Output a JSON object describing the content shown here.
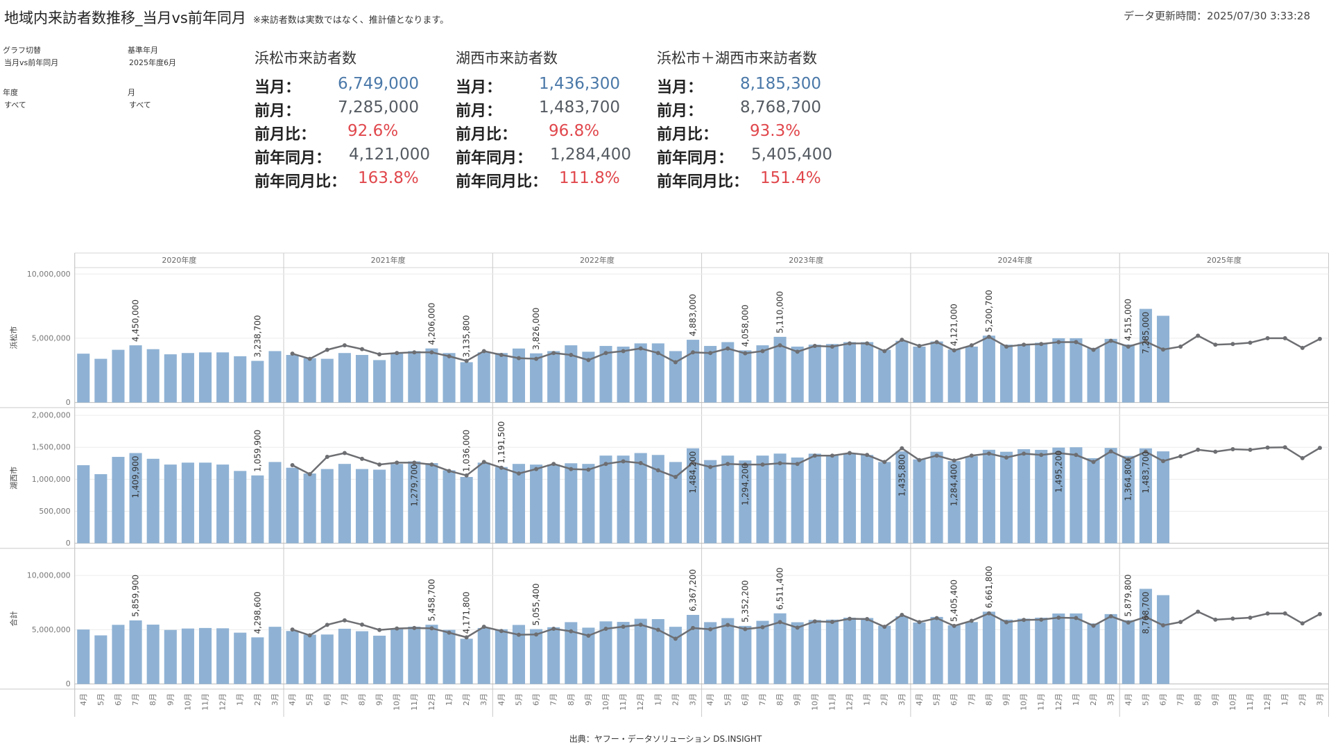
{
  "header": {
    "title": "地域内来訪者数推移_当月vs前年同月",
    "note": "※来訪者数は実数ではなく、推計値となります。",
    "updated": "データ更新時間：2025/07/30 3:33:28"
  },
  "filters": [
    {
      "label": "グラフ切替",
      "value": "当月vs前年同月"
    },
    {
      "label": "基準年月",
      "value": "2025年度6月"
    },
    {
      "label": "年度",
      "value": "すべて"
    },
    {
      "label": "月",
      "value": "すべて"
    }
  ],
  "kpis": [
    {
      "title": "浜松市来訪者数",
      "rows": [
        {
          "label": "当月：",
          "value": "6,749,000",
          "color": "#4a78a8"
        },
        {
          "label": "前月：",
          "value": "7,285,000",
          "color": "#555b62"
        },
        {
          "label": "前月比：",
          "value": "92.6%",
          "color": "#e0474c"
        },
        {
          "label": "前年同月：",
          "value": "4,121,000",
          "color": "#555b62"
        },
        {
          "label": "前年同月比：",
          "value": "163.8%",
          "color": "#e0474c"
        }
      ]
    },
    {
      "title": "湖西市来訪者数",
      "rows": [
        {
          "label": "当月：",
          "value": "1,436,300",
          "color": "#4a78a8"
        },
        {
          "label": "前月：",
          "value": "1,483,700",
          "color": "#555b62"
        },
        {
          "label": "前月比：",
          "value": "96.8%",
          "color": "#e0474c"
        },
        {
          "label": "前年同月：",
          "value": "1,284,400",
          "color": "#555b62"
        },
        {
          "label": "前年同月比：",
          "value": "111.8%",
          "color": "#e0474c"
        }
      ]
    },
    {
      "title": "浜松市＋湖西市来訪者数",
      "rows": [
        {
          "label": "当月：",
          "value": "8,185,300",
          "color": "#4a78a8"
        },
        {
          "label": "前月：",
          "value": "8,768,700",
          "color": "#555b62"
        },
        {
          "label": "前月比：",
          "value": "93.3%",
          "color": "#e0474c"
        },
        {
          "label": "前年同月：",
          "value": "5,405,400",
          "color": "#555b62"
        },
        {
          "label": "前年同月比：",
          "value": "151.4%",
          "color": "#e0474c"
        }
      ]
    }
  ],
  "x_axis": {
    "groups": [
      "2020年度",
      "2021年度",
      "2022年度",
      "2023年度",
      "2024年度",
      "2025年度"
    ],
    "categories": [
      "4月",
      "5月",
      "6月",
      "7月",
      "8月",
      "9月",
      "10月",
      "11月",
      "12月",
      "1月",
      "2月",
      "3月",
      "4月",
      "5月",
      "6月",
      "7月",
      "8月",
      "9月",
      "10月",
      "11月",
      "12月",
      "1月",
      "2月",
      "3月",
      "4月",
      "5月",
      "6月",
      "7月",
      "8月",
      "9月",
      "10月",
      "11月",
      "12月",
      "1月",
      "2月",
      "3月",
      "4月",
      "5月",
      "6月",
      "7月",
      "8月",
      "9月",
      "10月",
      "11月",
      "12月",
      "1月",
      "2月",
      "3月",
      "4月",
      "5月",
      "6月",
      "7月",
      "8月",
      "9月",
      "10月",
      "11月",
      "12月",
      "1月",
      "2月",
      "3月",
      "4月",
      "5月",
      "6月",
      "7月",
      "8月",
      "9月",
      "10月",
      "11月",
      "12月",
      "1月",
      "2月",
      "3月"
    ]
  },
  "chart_data": [
    {
      "type": "bar",
      "ylabel": "浜松市",
      "color": "#8fb2d4",
      "line_color": "#6d6e72",
      "grid": true,
      "ylim": [
        -400000,
        10500000
      ],
      "yticks": [
        0,
        {
          "value": 5000000,
          "label": "5,000,000"
        },
        {
          "value": 10000000,
          "label": "10,000,000"
        }
      ],
      "values": [
        3800000,
        3400000,
        4100000,
        4450000,
        4150000,
        3750000,
        3850000,
        3900000,
        3900000,
        3600000,
        3238700,
        4000000,
        3700000,
        3450000,
        3400000,
        3850000,
        3700000,
        3300000,
        3850000,
        4000000,
        4206000,
        3850000,
        3135800,
        3900000,
        3850000,
        4200000,
        3826000,
        4000000,
        4450000,
        3950000,
        4400000,
        4350000,
        4600000,
        4600000,
        4000000,
        4883000,
        4400000,
        4700000,
        4058000,
        4450000,
        5110000,
        4350000,
        4500000,
        4550000,
        4700000,
        4700000,
        4100000,
        4800000,
        4350000,
        4750000,
        4121000,
        4350000,
        5200700,
        4500000,
        4550000,
        4650000,
        5000000,
        5000000,
        4250000,
        4950000,
        4515000,
        7285000,
        6749000,
        null,
        null,
        null,
        null,
        null,
        null,
        null,
        null,
        null
      ],
      "line_values": [
        null,
        null,
        null,
        null,
        null,
        null,
        null,
        null,
        null,
        null,
        null,
        null,
        3800000,
        3400000,
        4100000,
        4450000,
        4150000,
        3750000,
        3850000,
        3900000,
        3900000,
        3600000,
        3238700,
        4000000,
        3700000,
        3450000,
        3400000,
        3850000,
        3700000,
        3300000,
        3850000,
        4000000,
        4206000,
        3850000,
        3135800,
        3900000,
        3850000,
        4200000,
        3826000,
        4000000,
        4450000,
        3950000,
        4400000,
        4350000,
        4600000,
        4600000,
        4000000,
        4883000,
        4400000,
        4700000,
        4058000,
        4450000,
        5110000,
        4350000,
        4500000,
        4550000,
        4700000,
        4700000,
        4100000,
        4800000,
        4350000,
        4750000,
        4121000,
        4350000,
        5200700,
        4500000,
        4550000,
        4650000,
        5000000,
        5000000,
        4250000,
        4950000
      ],
      "value_labels": [
        null,
        null,
        null,
        "4,450,000",
        null,
        null,
        null,
        null,
        null,
        null,
        "3,238,700",
        null,
        null,
        null,
        null,
        null,
        null,
        null,
        null,
        null,
        "4,206,000",
        null,
        "3,135,800",
        null,
        null,
        null,
        "3,826,000",
        null,
        null,
        null,
        null,
        null,
        null,
        null,
        null,
        "4,883,000",
        null,
        null,
        "4,058,000",
        null,
        "5,110,000",
        null,
        null,
        null,
        null,
        null,
        null,
        null,
        null,
        null,
        "4,121,000",
        null,
        "5,200,700",
        null,
        null,
        null,
        null,
        null,
        null,
        null,
        "4,515,000",
        "7,285,000",
        null,
        null,
        null,
        null,
        null,
        null,
        null,
        null,
        null,
        null
      ]
    },
    {
      "type": "bar",
      "ylabel": "湖西市",
      "color": "#8fb2d4",
      "line_color": "#6d6e72",
      "grid": true,
      "ylim": [
        -80000,
        2120000
      ],
      "yticks": [
        0,
        {
          "value": 500000,
          "label": "500,000"
        },
        {
          "value": 1000000,
          "label": "1,000,000"
        },
        {
          "value": 1500000,
          "label": "1,500,000"
        },
        {
          "value": 2000000,
          "label": "2,000,000"
        }
      ],
      "values": [
        1220000,
        1080000,
        1350000,
        1409900,
        1320000,
        1230000,
        1260000,
        1260000,
        1230000,
        1130000,
        1059900,
        1270000,
        1180000,
        1090000,
        1160000,
        1240000,
        1160000,
        1150000,
        1240000,
        1279700,
        1252700,
        1140000,
        1036000,
        1260000,
        1191500,
        1240000,
        1229400,
        1230000,
        1250000,
        1240000,
        1370000,
        1370000,
        1410000,
        1380000,
        1270000,
        1484200,
        1300000,
        1370000,
        1294200,
        1370000,
        1401400,
        1340000,
        1400000,
        1380000,
        1410000,
        1380000,
        1270000,
        1435800,
        1310000,
        1430000,
        1284400,
        1360000,
        1461100,
        1430000,
        1470000,
        1460000,
        1495200,
        1500000,
        1330000,
        1490000,
        1364800,
        1483700,
        1436300,
        null,
        null,
        null,
        null,
        null,
        null,
        null,
        null,
        null
      ],
      "line_values": [
        null,
        null,
        null,
        null,
        null,
        null,
        null,
        null,
        null,
        null,
        null,
        null,
        1220000,
        1080000,
        1350000,
        1409900,
        1320000,
        1230000,
        1260000,
        1260000,
        1230000,
        1130000,
        1059900,
        1270000,
        1180000,
        1090000,
        1160000,
        1240000,
        1160000,
        1150000,
        1240000,
        1279700,
        1252700,
        1140000,
        1036000,
        1260000,
        1191500,
        1240000,
        1229400,
        1230000,
        1250000,
        1240000,
        1370000,
        1370000,
        1410000,
        1380000,
        1270000,
        1484200,
        1300000,
        1370000,
        1294200,
        1370000,
        1401400,
        1340000,
        1400000,
        1380000,
        1410000,
        1380000,
        1270000,
        1435800,
        1310000,
        1430000,
        1284400,
        1360000,
        1461100,
        1430000,
        1470000,
        1460000,
        1495200,
        1500000,
        1330000,
        1490000
      ],
      "value_labels": [
        null,
        null,
        null,
        "1,409,900",
        null,
        null,
        null,
        null,
        null,
        null,
        "1,059,900",
        null,
        null,
        null,
        null,
        null,
        null,
        null,
        null,
        "1,279,700",
        null,
        null,
        "1,036,000",
        null,
        "1,191,500",
        null,
        null,
        null,
        null,
        null,
        null,
        null,
        null,
        null,
        null,
        "1,484,200",
        null,
        null,
        "1,294,200",
        null,
        null,
        null,
        null,
        null,
        null,
        null,
        null,
        "1,435,800",
        null,
        null,
        "1,284,400",
        null,
        null,
        null,
        null,
        null,
        "1,495,200",
        null,
        null,
        null,
        "1,364,800",
        "1,483,700",
        null,
        null,
        null,
        null,
        null,
        null,
        null,
        null,
        null,
        null
      ]
    },
    {
      "type": "bar",
      "ylabel": "合計",
      "color": "#8fb2d4",
      "line_color": "#6d6e72",
      "grid": true,
      "ylim": [
        -470000,
        12500000
      ],
      "yticks": [
        0,
        {
          "value": 5000000,
          "label": "5,000,000"
        },
        {
          "value": 10000000,
          "label": "10,000,000"
        }
      ],
      "values": [
        5020000,
        4480000,
        5450000,
        5859900,
        5470000,
        4980000,
        5110000,
        5160000,
        5130000,
        4730000,
        4298600,
        5270000,
        4880000,
        4540000,
        4560000,
        5090000,
        4860000,
        4450000,
        5090000,
        5279700,
        5458700,
        4990000,
        4171800,
        5160000,
        5041500,
        5440000,
        5055400,
        5230000,
        5700000,
        5190000,
        5770000,
        5720000,
        6010000,
        5980000,
        5270000,
        6367200,
        5700000,
        6070000,
        5352200,
        5820000,
        6511400,
        5690000,
        5900000,
        5930000,
        6110000,
        6080000,
        5370000,
        6235800,
        5660000,
        6180000,
        5405400,
        5710000,
        6661800,
        5930000,
        6020000,
        6110000,
        6495200,
        6500000,
        5580000,
        6440000,
        5879800,
        8768700,
        8185300,
        null,
        null,
        null,
        null,
        null,
        null,
        null,
        null,
        null
      ],
      "line_values": [
        null,
        null,
        null,
        null,
        null,
        null,
        null,
        null,
        null,
        null,
        null,
        null,
        5020000,
        4480000,
        5450000,
        5859900,
        5470000,
        4980000,
        5110000,
        5160000,
        5130000,
        4730000,
        4298600,
        5270000,
        4880000,
        4540000,
        4560000,
        5090000,
        4860000,
        4450000,
        5090000,
        5279700,
        5458700,
        4990000,
        4171800,
        5160000,
        5041500,
        5440000,
        5055400,
        5230000,
        5700000,
        5190000,
        5770000,
        5720000,
        6010000,
        5980000,
        5270000,
        6367200,
        5700000,
        6070000,
        5352200,
        5820000,
        6511400,
        5690000,
        5900000,
        5930000,
        6110000,
        6080000,
        5370000,
        6235800,
        5660000,
        6180000,
        5405400,
        5710000,
        6661800,
        5930000,
        6020000,
        6110000,
        6495200,
        6500000,
        5580000,
        6440000
      ],
      "value_labels": [
        null,
        null,
        null,
        "5,859,900",
        null,
        null,
        null,
        null,
        null,
        null,
        "4,298,600",
        null,
        null,
        null,
        null,
        null,
        null,
        null,
        null,
        null,
        "5,458,700",
        null,
        "4,171,800",
        null,
        null,
        null,
        "5,055,400",
        null,
        null,
        null,
        null,
        null,
        null,
        null,
        null,
        "6,367,200",
        null,
        null,
        "5,352,200",
        null,
        "6,511,400",
        null,
        null,
        null,
        null,
        null,
        null,
        null,
        null,
        null,
        "5,405,400",
        null,
        "6,661,800",
        null,
        null,
        null,
        null,
        null,
        null,
        null,
        "5,879,800",
        "8,768,700",
        null,
        null,
        null,
        null,
        null,
        null,
        null,
        null,
        null,
        null
      ]
    }
  ],
  "source": "出典：ヤフー・データソリューション DS.INSIGHT"
}
